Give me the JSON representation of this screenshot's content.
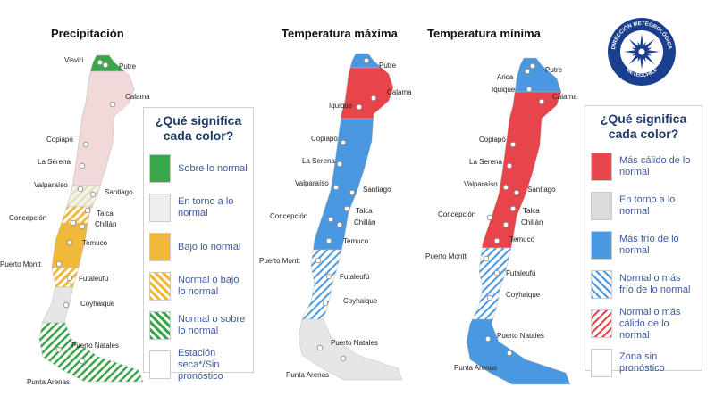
{
  "maps": [
    {
      "title": "Precipitación",
      "cities": [
        "Visviri",
        "Putre",
        "Calama",
        "Copiapó",
        "La Serena",
        "Valparaíso",
        "Santiago",
        "Concepción",
        "Talca",
        "Chillán",
        "Temuco",
        "Puerto Montt",
        "Futaleufú",
        "Coyhaique",
        "Puerto Natales",
        "Punta Arenas"
      ]
    },
    {
      "title": "Temperatura máxima",
      "cities": [
        "Putre",
        "Iquique",
        "Calama",
        "Copiapó",
        "La Serena",
        "Valparaíso",
        "Santiago",
        "Concepción",
        "Talca",
        "Chillán",
        "Temuco",
        "Puerto Montt",
        "Futaleufú",
        "Coyhaique",
        "Puerto Natales",
        "Punta Arenas"
      ]
    },
    {
      "title": "Temperatura mínima",
      "cities": [
        "Arica",
        "Putre",
        "Iquique",
        "Calama",
        "Copiapó",
        "La Serena",
        "Valparaíso",
        "Santiago",
        "Concepción",
        "Talca",
        "Chillán",
        "Temuco",
        "Puerto Montt",
        "Futaleufú",
        "Coyhaique",
        "Puerto Natales",
        "Punta Arenas"
      ]
    }
  ],
  "legends": [
    {
      "title": "¿Qué significa cada color?",
      "items": [
        "Sobre lo normal",
        "En torno a lo normal",
        "Bajo lo normal",
        "Normal o bajo lo normal",
        "Normal o sobre lo normal",
        "Estación seca*/Sin pronóstico"
      ]
    },
    {
      "title": "¿Qué significa cada color?",
      "items": [
        "Más cálido de lo normal",
        "En torno a lo normal",
        "Más frío de lo normal",
        "Normal o más frío de lo normal",
        "Normal o más cálido de lo normal",
        "Zona sin pronóstico"
      ]
    }
  ],
  "logo": {
    "top": "DIRECCIÓN METEOROLÓGICA",
    "bottom": "METEOCHILE"
  }
}
